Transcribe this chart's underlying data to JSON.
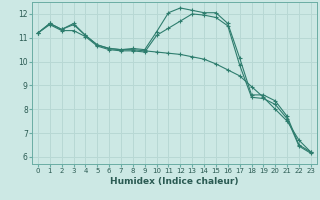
{
  "xlabel": "Humidex (Indice chaleur)",
  "background_color": "#cce8e4",
  "grid_color": "#b8d8d4",
  "line_color": "#2e7d6e",
  "xlim": [
    -0.5,
    23.5
  ],
  "ylim": [
    5.7,
    12.5
  ],
  "x": [
    0,
    1,
    2,
    3,
    4,
    5,
    6,
    7,
    8,
    9,
    10,
    11,
    12,
    13,
    14,
    15,
    16,
    17,
    18,
    19,
    20,
    21,
    22,
    23
  ],
  "line1": [
    11.2,
    11.6,
    11.35,
    11.6,
    11.1,
    10.7,
    10.55,
    10.5,
    10.55,
    10.5,
    11.25,
    12.05,
    12.25,
    12.15,
    12.05,
    12.05,
    11.6,
    10.15,
    8.6,
    8.6,
    8.35,
    7.7,
    6.5,
    6.2
  ],
  "line2": [
    11.2,
    11.6,
    11.35,
    11.55,
    11.1,
    10.7,
    10.55,
    10.5,
    10.5,
    10.45,
    10.4,
    10.35,
    10.3,
    10.2,
    10.1,
    9.9,
    9.65,
    9.4,
    8.95,
    8.5,
    8.0,
    7.5,
    6.7,
    6.2
  ],
  "line3": [
    11.2,
    11.55,
    11.3,
    11.3,
    11.05,
    10.65,
    10.5,
    10.45,
    10.45,
    10.4,
    11.1,
    11.4,
    11.7,
    12.0,
    11.95,
    11.85,
    11.5,
    9.85,
    8.5,
    8.45,
    8.2,
    7.6,
    6.45,
    6.15
  ],
  "yticks": [
    6,
    7,
    8,
    9,
    10,
    11,
    12
  ],
  "xticks": [
    0,
    1,
    2,
    3,
    4,
    5,
    6,
    7,
    8,
    9,
    10,
    11,
    12,
    13,
    14,
    15,
    16,
    17,
    18,
    19,
    20,
    21,
    22,
    23
  ]
}
